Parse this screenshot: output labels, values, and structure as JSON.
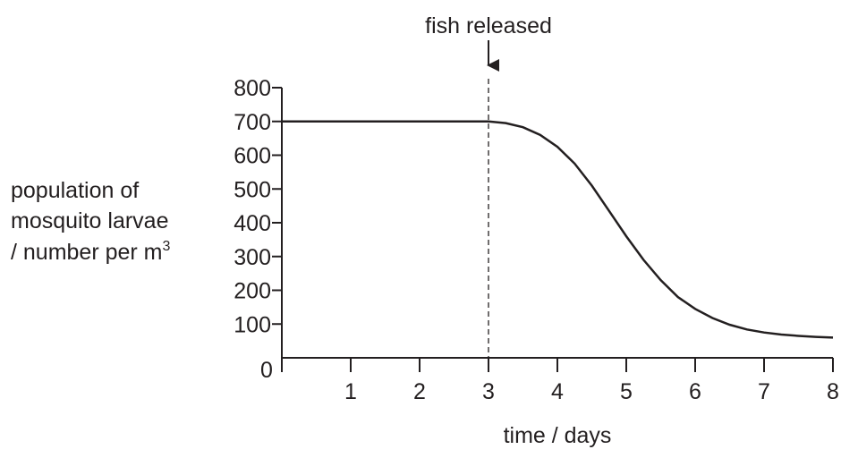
{
  "chart_data": {
    "type": "line",
    "title": "",
    "xlabel": "time / days",
    "ylabel_lines": [
      "population of",
      "mosquito larvae",
      "/ number per m"
    ],
    "ylabel_superscript": "3",
    "xlim": [
      0,
      8
    ],
    "ylim": [
      0,
      800
    ],
    "x_ticks": [
      0,
      1,
      2,
      3,
      4,
      5,
      6,
      7,
      8
    ],
    "x_tick_labels": [
      "1",
      "2",
      "3",
      "4",
      "5",
      "6",
      "7",
      "8"
    ],
    "y_ticks": [
      0,
      100,
      200,
      300,
      400,
      500,
      600,
      700,
      800
    ],
    "y_tick_labels": [
      "100",
      "200",
      "300",
      "400",
      "500",
      "600",
      "700",
      "800"
    ],
    "origin_label": "0",
    "grid": false,
    "series": [
      {
        "x": [
          0,
          1,
          2,
          3,
          3.25,
          3.5,
          3.75,
          4,
          4.25,
          4.5,
          4.75,
          5,
          5.25,
          5.5,
          5.75,
          6,
          6.25,
          6.5,
          6.75,
          7,
          7.25,
          7.5,
          7.75,
          8
        ],
        "y": [
          700,
          700,
          700,
          700,
          695,
          683,
          660,
          625,
          575,
          510,
          435,
          360,
          290,
          230,
          180,
          145,
          118,
          98,
          84,
          75,
          69,
          65,
          62,
          60
        ]
      }
    ],
    "annotation": {
      "text": "fish released",
      "x": 3,
      "style": "dashed vertical line with downward arrow"
    },
    "line_color": "#231f20"
  }
}
